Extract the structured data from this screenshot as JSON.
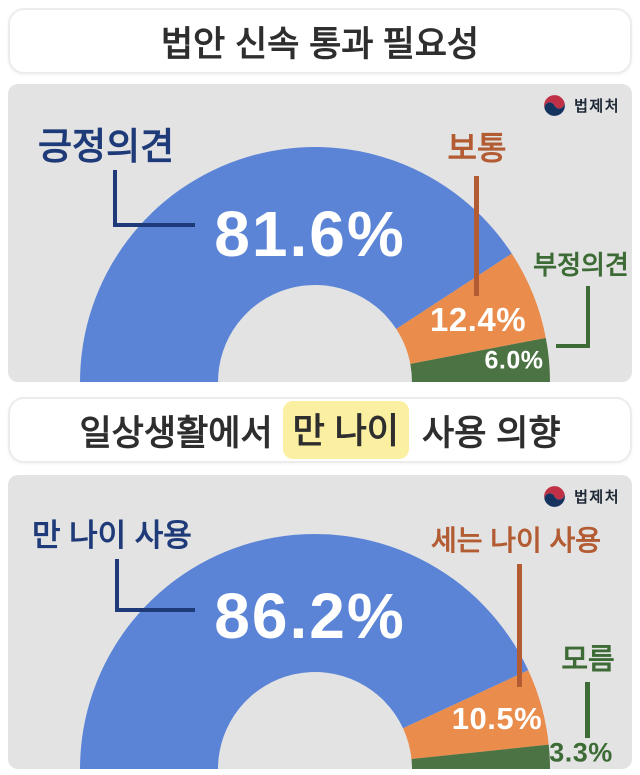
{
  "logo": {
    "text": "법제처"
  },
  "headers": [
    {
      "regular": "법안 신속 통과",
      "bold": "필요성"
    },
    {
      "regular": "일상생활에서",
      "highlight": "만 나이",
      "bold": "사용 의향",
      "highlight_color": "#fbf0a2"
    }
  ],
  "chart_data": [
    {
      "type": "pie",
      "variant": "half-donut",
      "title": "법안 신속 통과 필요성",
      "categories": [
        "긍정의견",
        "보통",
        "부정의견"
      ],
      "values": [
        81.6,
        12.4,
        6.0
      ],
      "display": [
        "81.6%",
        "12.4%",
        "6.0%"
      ],
      "unit": "%",
      "colors": [
        "#5b84d7",
        "#e98c4c",
        "#4c7343"
      ],
      "label_colors": [
        "#1e3a78",
        "#b35c33",
        "#3d6b35"
      ],
      "start_angle_deg": 180,
      "end_angle_deg": 0,
      "legend": "none"
    },
    {
      "type": "pie",
      "variant": "half-donut",
      "title": "일상생활에서 만 나이 사용 의향",
      "categories": [
        "만 나이 사용",
        "세는 나이 사용",
        "모름"
      ],
      "values": [
        86.2,
        10.5,
        3.3
      ],
      "display": [
        "86.2%",
        "10.5%",
        "3.3%"
      ],
      "unit": "%",
      "colors": [
        "#5b84d7",
        "#e98c4c",
        "#4c7343"
      ],
      "label_colors": [
        "#1e3a78",
        "#b35c33",
        "#3d6b35"
      ],
      "start_angle_deg": 180,
      "end_angle_deg": 0,
      "legend": "none"
    }
  ]
}
